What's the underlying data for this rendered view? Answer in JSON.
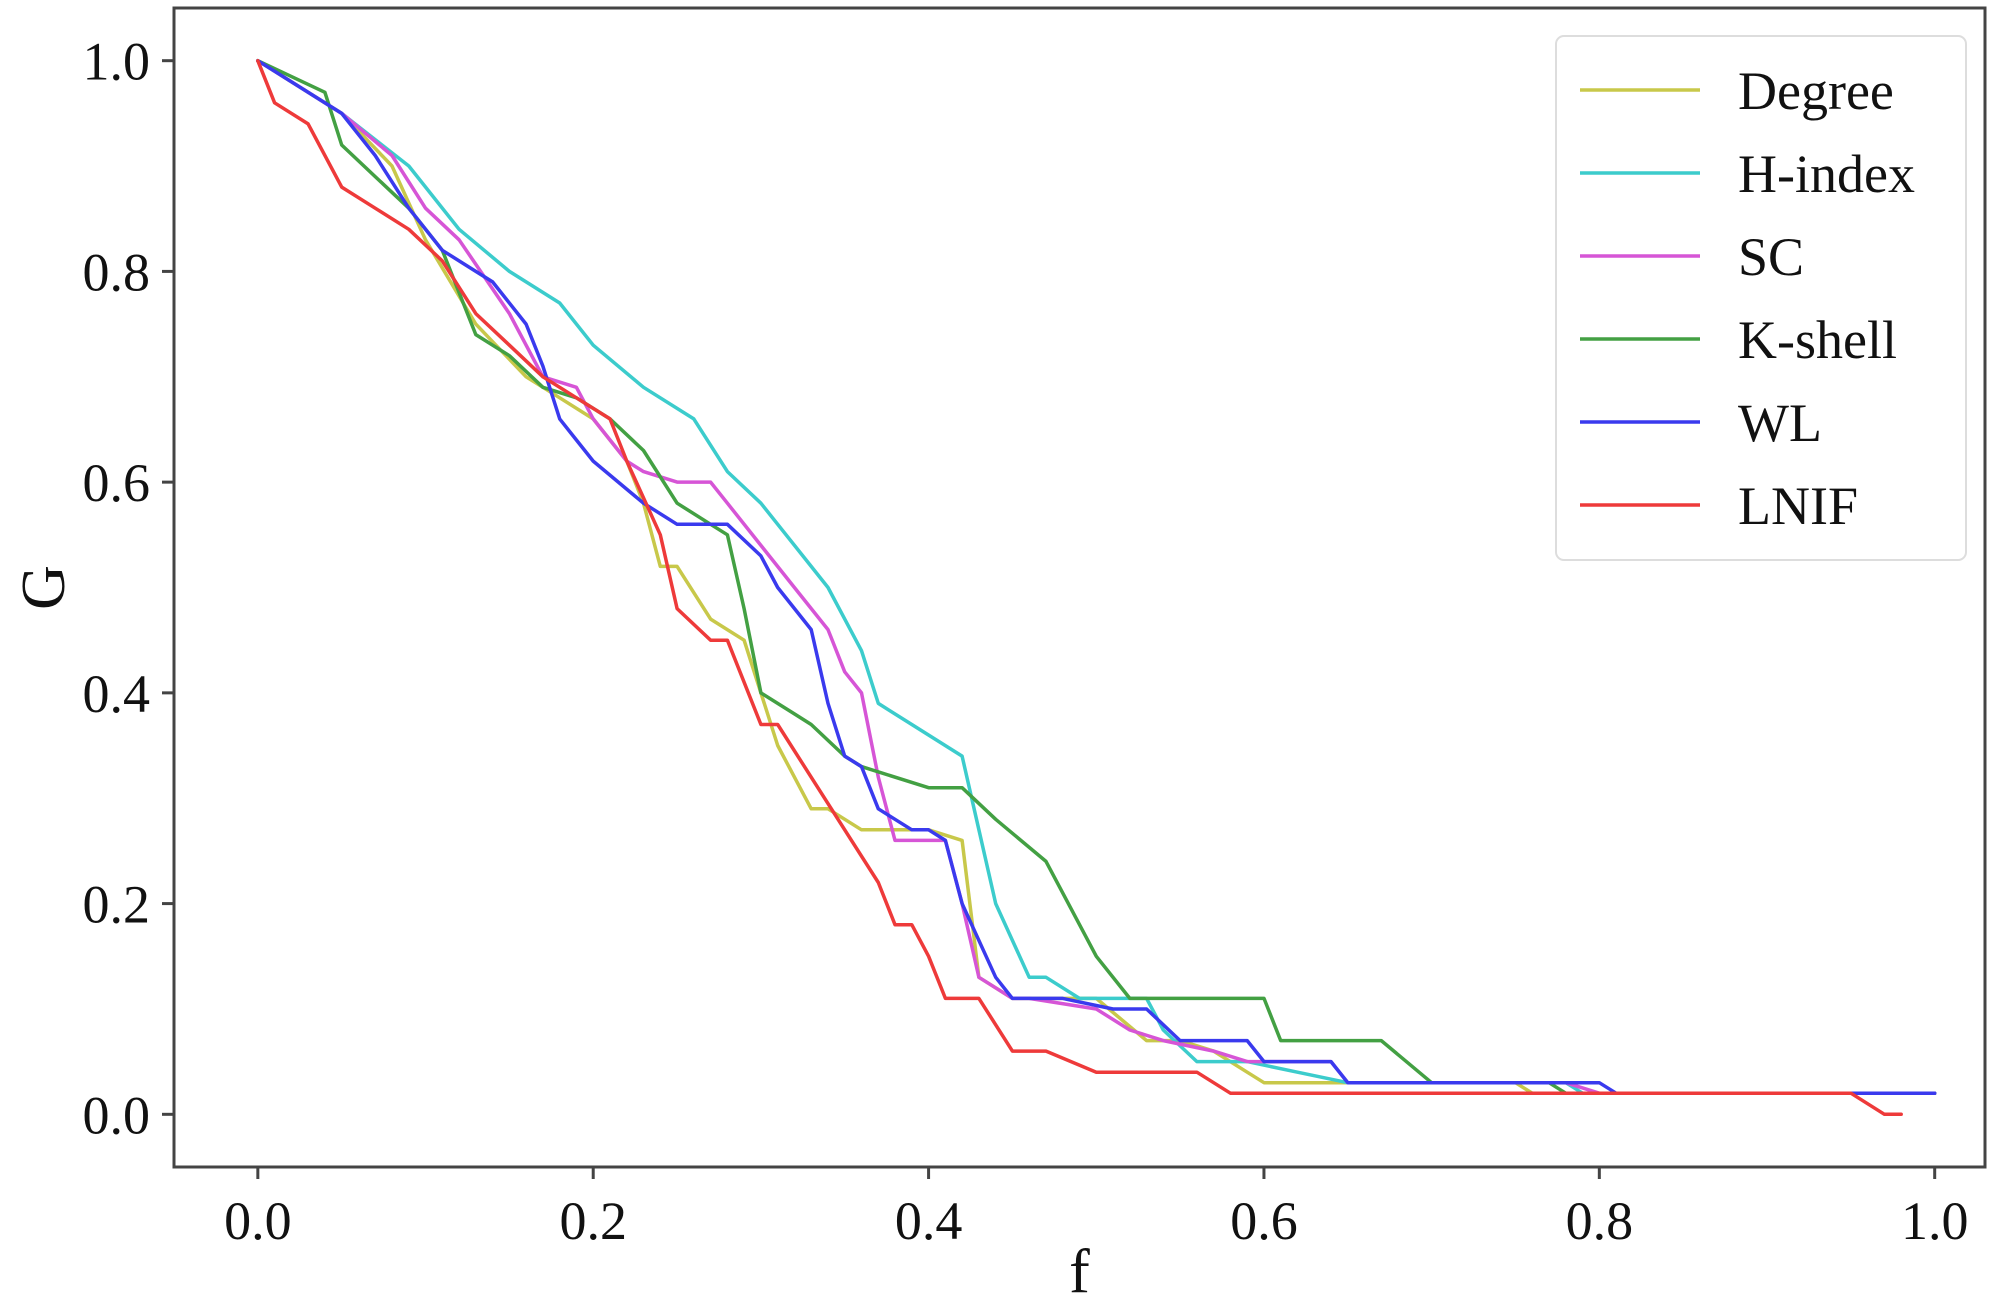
{
  "chart_data": {
    "type": "line",
    "title": "",
    "xlabel": "f",
    "ylabel": "G",
    "xlim": [
      -0.05,
      1.03
    ],
    "ylim": [
      -0.05,
      1.05
    ],
    "xticks": [
      0.0,
      0.2,
      0.4,
      0.6,
      0.8,
      1.0
    ],
    "xtick_labels": [
      "0.0",
      "0.2",
      "0.4",
      "0.6",
      "0.8",
      "1.0"
    ],
    "yticks": [
      0.0,
      0.2,
      0.4,
      0.6,
      0.8,
      1.0
    ],
    "ytick_labels": [
      "0.0",
      "0.2",
      "0.4",
      "0.6",
      "0.8",
      "1.0"
    ],
    "grid": false,
    "legend_position": "top-right",
    "series": [
      {
        "name": "Degree",
        "color": "#c8c84a",
        "points": [
          [
            0.0,
            1.0
          ],
          [
            0.05,
            0.95
          ],
          [
            0.08,
            0.9
          ],
          [
            0.1,
            0.83
          ],
          [
            0.13,
            0.75
          ],
          [
            0.16,
            0.7
          ],
          [
            0.18,
            0.68
          ],
          [
            0.2,
            0.66
          ],
          [
            0.22,
            0.62
          ],
          [
            0.23,
            0.58
          ],
          [
            0.24,
            0.52
          ],
          [
            0.25,
            0.52
          ],
          [
            0.27,
            0.47
          ],
          [
            0.29,
            0.45
          ],
          [
            0.31,
            0.35
          ],
          [
            0.33,
            0.29
          ],
          [
            0.34,
            0.29
          ],
          [
            0.36,
            0.27
          ],
          [
            0.4,
            0.27
          ],
          [
            0.42,
            0.26
          ],
          [
            0.43,
            0.13
          ],
          [
            0.45,
            0.11
          ],
          [
            0.5,
            0.11
          ],
          [
            0.53,
            0.07
          ],
          [
            0.55,
            0.07
          ],
          [
            0.57,
            0.06
          ],
          [
            0.59,
            0.04
          ],
          [
            0.6,
            0.03
          ],
          [
            0.64,
            0.03
          ],
          [
            0.65,
            0.03
          ],
          [
            0.75,
            0.03
          ],
          [
            0.76,
            0.02
          ],
          [
            1.0,
            0.02
          ]
        ]
      },
      {
        "name": "H-index",
        "color": "#3ccccc",
        "points": [
          [
            0.0,
            1.0
          ],
          [
            0.05,
            0.95
          ],
          [
            0.09,
            0.9
          ],
          [
            0.12,
            0.84
          ],
          [
            0.15,
            0.8
          ],
          [
            0.18,
            0.77
          ],
          [
            0.2,
            0.73
          ],
          [
            0.23,
            0.69
          ],
          [
            0.26,
            0.66
          ],
          [
            0.28,
            0.61
          ],
          [
            0.3,
            0.58
          ],
          [
            0.31,
            0.56
          ],
          [
            0.33,
            0.52
          ],
          [
            0.34,
            0.5
          ],
          [
            0.36,
            0.44
          ],
          [
            0.37,
            0.39
          ],
          [
            0.39,
            0.37
          ],
          [
            0.42,
            0.34
          ],
          [
            0.43,
            0.27
          ],
          [
            0.44,
            0.2
          ],
          [
            0.46,
            0.13
          ],
          [
            0.47,
            0.13
          ],
          [
            0.49,
            0.11
          ],
          [
            0.53,
            0.11
          ],
          [
            0.54,
            0.08
          ],
          [
            0.56,
            0.05
          ],
          [
            0.58,
            0.05
          ],
          [
            0.59,
            0.05
          ],
          [
            0.62,
            0.04
          ],
          [
            0.65,
            0.03
          ],
          [
            0.78,
            0.03
          ],
          [
            0.79,
            0.02
          ],
          [
            1.0,
            0.02
          ]
        ]
      },
      {
        "name": "SC",
        "color": "#d655d6",
        "points": [
          [
            0.0,
            1.0
          ],
          [
            0.05,
            0.95
          ],
          [
            0.08,
            0.91
          ],
          [
            0.1,
            0.86
          ],
          [
            0.12,
            0.83
          ],
          [
            0.15,
            0.76
          ],
          [
            0.17,
            0.7
          ],
          [
            0.19,
            0.69
          ],
          [
            0.2,
            0.66
          ],
          [
            0.22,
            0.62
          ],
          [
            0.23,
            0.61
          ],
          [
            0.25,
            0.6
          ],
          [
            0.27,
            0.6
          ],
          [
            0.28,
            0.58
          ],
          [
            0.3,
            0.54
          ],
          [
            0.32,
            0.5
          ],
          [
            0.34,
            0.46
          ],
          [
            0.35,
            0.42
          ],
          [
            0.36,
            0.4
          ],
          [
            0.37,
            0.32
          ],
          [
            0.38,
            0.26
          ],
          [
            0.41,
            0.26
          ],
          [
            0.42,
            0.2
          ],
          [
            0.43,
            0.13
          ],
          [
            0.45,
            0.11
          ],
          [
            0.46,
            0.11
          ],
          [
            0.5,
            0.1
          ],
          [
            0.52,
            0.08
          ],
          [
            0.54,
            0.07
          ],
          [
            0.57,
            0.06
          ],
          [
            0.59,
            0.05
          ],
          [
            0.64,
            0.05
          ],
          [
            0.65,
            0.03
          ],
          [
            0.78,
            0.03
          ],
          [
            0.8,
            0.02
          ],
          [
            1.0,
            0.02
          ]
        ]
      },
      {
        "name": "K-shell",
        "color": "#43a043",
        "points": [
          [
            0.0,
            1.0
          ],
          [
            0.04,
            0.97
          ],
          [
            0.05,
            0.92
          ],
          [
            0.07,
            0.89
          ],
          [
            0.09,
            0.86
          ],
          [
            0.11,
            0.82
          ],
          [
            0.13,
            0.74
          ],
          [
            0.15,
            0.72
          ],
          [
            0.17,
            0.69
          ],
          [
            0.19,
            0.68
          ],
          [
            0.21,
            0.66
          ],
          [
            0.23,
            0.63
          ],
          [
            0.25,
            0.58
          ],
          [
            0.27,
            0.56
          ],
          [
            0.28,
            0.55
          ],
          [
            0.29,
            0.48
          ],
          [
            0.3,
            0.4
          ],
          [
            0.32,
            0.38
          ],
          [
            0.33,
            0.37
          ],
          [
            0.35,
            0.34
          ],
          [
            0.36,
            0.33
          ],
          [
            0.4,
            0.31
          ],
          [
            0.42,
            0.31
          ],
          [
            0.44,
            0.28
          ],
          [
            0.47,
            0.24
          ],
          [
            0.5,
            0.15
          ],
          [
            0.52,
            0.11
          ],
          [
            0.6,
            0.11
          ],
          [
            0.61,
            0.07
          ],
          [
            0.67,
            0.07
          ],
          [
            0.7,
            0.03
          ],
          [
            0.77,
            0.03
          ],
          [
            0.78,
            0.02
          ],
          [
            1.0,
            0.02
          ]
        ]
      },
      {
        "name": "WL",
        "color": "#3a3aee",
        "points": [
          [
            0.0,
            1.0
          ],
          [
            0.05,
            0.95
          ],
          [
            0.07,
            0.91
          ],
          [
            0.09,
            0.86
          ],
          [
            0.11,
            0.82
          ],
          [
            0.13,
            0.8
          ],
          [
            0.14,
            0.79
          ],
          [
            0.16,
            0.75
          ],
          [
            0.17,
            0.71
          ],
          [
            0.18,
            0.66
          ],
          [
            0.19,
            0.64
          ],
          [
            0.2,
            0.62
          ],
          [
            0.23,
            0.58
          ],
          [
            0.25,
            0.56
          ],
          [
            0.28,
            0.56
          ],
          [
            0.3,
            0.53
          ],
          [
            0.31,
            0.5
          ],
          [
            0.33,
            0.46
          ],
          [
            0.34,
            0.39
          ],
          [
            0.35,
            0.34
          ],
          [
            0.36,
            0.33
          ],
          [
            0.37,
            0.29
          ],
          [
            0.38,
            0.28
          ],
          [
            0.39,
            0.27
          ],
          [
            0.4,
            0.27
          ],
          [
            0.41,
            0.26
          ],
          [
            0.42,
            0.2
          ],
          [
            0.44,
            0.13
          ],
          [
            0.45,
            0.11
          ],
          [
            0.48,
            0.11
          ],
          [
            0.51,
            0.1
          ],
          [
            0.53,
            0.1
          ],
          [
            0.55,
            0.07
          ],
          [
            0.59,
            0.07
          ],
          [
            0.6,
            0.05
          ],
          [
            0.64,
            0.05
          ],
          [
            0.65,
            0.03
          ],
          [
            0.8,
            0.03
          ],
          [
            0.81,
            0.02
          ],
          [
            1.0,
            0.02
          ]
        ]
      },
      {
        "name": "LNIF",
        "color": "#ee3a3a",
        "points": [
          [
            0.0,
            1.0
          ],
          [
            0.01,
            0.96
          ],
          [
            0.03,
            0.94
          ],
          [
            0.05,
            0.88
          ],
          [
            0.07,
            0.86
          ],
          [
            0.09,
            0.84
          ],
          [
            0.11,
            0.81
          ],
          [
            0.13,
            0.76
          ],
          [
            0.15,
            0.73
          ],
          [
            0.17,
            0.7
          ],
          [
            0.19,
            0.68
          ],
          [
            0.21,
            0.66
          ],
          [
            0.22,
            0.62
          ],
          [
            0.24,
            0.55
          ],
          [
            0.25,
            0.48
          ],
          [
            0.27,
            0.45
          ],
          [
            0.28,
            0.45
          ],
          [
            0.3,
            0.37
          ],
          [
            0.31,
            0.37
          ],
          [
            0.33,
            0.32
          ],
          [
            0.35,
            0.27
          ],
          [
            0.37,
            0.22
          ],
          [
            0.38,
            0.18
          ],
          [
            0.39,
            0.18
          ],
          [
            0.4,
            0.15
          ],
          [
            0.41,
            0.11
          ],
          [
            0.42,
            0.11
          ],
          [
            0.43,
            0.11
          ],
          [
            0.45,
            0.06
          ],
          [
            0.47,
            0.06
          ],
          [
            0.5,
            0.04
          ],
          [
            0.52,
            0.04
          ],
          [
            0.56,
            0.04
          ],
          [
            0.58,
            0.02
          ],
          [
            0.95,
            0.02
          ],
          [
            0.97,
            0.0
          ],
          [
            0.98,
            0.0
          ]
        ]
      }
    ]
  }
}
